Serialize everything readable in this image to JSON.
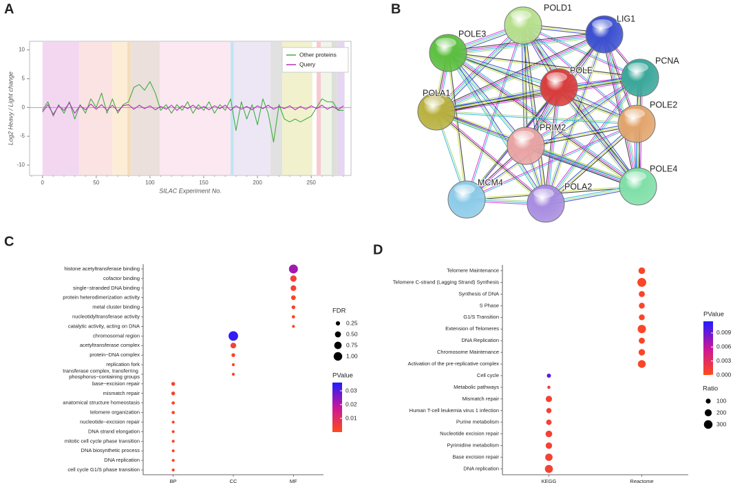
{
  "chart_data": [
    {
      "type": "line",
      "panel": "A",
      "x_label": "SILAC Experiment No.",
      "y_label": "Log2 Heavy / Light change",
      "x": [
        0,
        5,
        10,
        15,
        20,
        25,
        30,
        35,
        40,
        45,
        50,
        55,
        60,
        65,
        70,
        75,
        80,
        85,
        90,
        95,
        100,
        105,
        110,
        115,
        120,
        125,
        130,
        135,
        140,
        145,
        150,
        155,
        160,
        165,
        170,
        175,
        180,
        185,
        190,
        195,
        200,
        205,
        210,
        215,
        220,
        225,
        230,
        235,
        240,
        245,
        250,
        255,
        260,
        265,
        270,
        275,
        280
      ],
      "series": [
        {
          "name": "Other proteins",
          "color": "#3fae3f",
          "values": [
            -0.5,
            1,
            -1.5,
            0.5,
            -1,
            1,
            -2,
            0.5,
            -1,
            1.5,
            0,
            2.5,
            -1,
            1.5,
            -1,
            0.5,
            1,
            3.5,
            4,
            3,
            4.5,
            2.5,
            -0.5,
            0.5,
            -1,
            0.5,
            -0.5,
            1,
            -1,
            0.5,
            -0.5,
            1,
            -1,
            0.5,
            -0.5,
            1.5,
            -4,
            1,
            -2,
            0.5,
            -3,
            1.5,
            -1,
            -6,
            0.5,
            -2,
            -2.5,
            -2,
            -2.5,
            -2,
            -1.5,
            0,
            1.5,
            1,
            1,
            -0.5,
            -0.5
          ]
        },
        {
          "name": "Query",
          "color": "#b22fb8",
          "values": [
            -0.8,
            0.5,
            -1.2,
            0.3,
            -0.5,
            0.8,
            -1,
            0.3,
            -0.4,
            0.6,
            -0.3,
            0.5,
            -0.5,
            0.4,
            -0.6,
            0.3,
            0.5,
            -0.3,
            0.4,
            -0.2,
            0.3,
            -0.4,
            0.2,
            -0.3,
            0.4,
            -0.5,
            0.3,
            -0.2,
            0.4,
            -0.3,
            0.2,
            -0.4,
            0.3,
            -0.2,
            0.4,
            -0.5,
            0.3,
            -0.3,
            0.2,
            -0.4,
            0.3,
            -0.2,
            0.4,
            -0.3,
            0.2,
            -0.2,
            0.3,
            -0.4,
            0.2,
            -0.3,
            0.3,
            -0.2,
            0.4,
            -0.3,
            0.2,
            -0.4,
            0.3
          ]
        }
      ],
      "bands": [
        {
          "range": [
            0,
            34
          ],
          "color": "#f2d3ef"
        },
        {
          "range": [
            34,
            65
          ],
          "color": "#fbe0e0"
        },
        {
          "range": [
            65,
            79
          ],
          "color": "#fdebd3"
        },
        {
          "range": [
            79,
            82
          ],
          "color": "#f2d9b0"
        },
        {
          "range": [
            82,
            109
          ],
          "color": "#e9ddd8"
        },
        {
          "range": [
            109,
            175
          ],
          "color": "#fbe6ef"
        },
        {
          "range": [
            175,
            178
          ],
          "color": "#b9e2f2"
        },
        {
          "range": [
            178,
            212
          ],
          "color": "#ebe4f4"
        },
        {
          "range": [
            212,
            223
          ],
          "color": "#dedede"
        },
        {
          "range": [
            223,
            251
          ],
          "color": "#efefc8"
        },
        {
          "range": [
            255,
            259
          ],
          "color": "#f7c3cc"
        },
        {
          "range": [
            259,
            269
          ],
          "color": "#eef4e6"
        },
        {
          "range": [
            269,
            274
          ],
          "color": "#d9dcd6"
        },
        {
          "range": [
            274,
            281
          ],
          "color": "#e2d3ef"
        }
      ],
      "xlim": [
        -12,
        287
      ],
      "ylim": [
        -11.8,
        11.5
      ],
      "xticks": [
        0,
        50,
        100,
        150,
        200,
        250
      ],
      "yticks": [
        -10,
        -5,
        0,
        5,
        10
      ],
      "legend": "upper right"
    },
    {
      "type": "dot",
      "panel": "C",
      "x_categories": [
        "BP",
        "CC",
        "MF"
      ],
      "categories": [
        "histone acetyltransferase binding",
        "cofactor binding",
        "single−stranded DNA binding",
        "protein heterodimerization activity",
        "metal cluster binding",
        "nucleotidyltransferase activity",
        "catalytic activity, acting on DNA",
        "chromosomal region",
        "acetyltransferase complex",
        "protein−DNA complex",
        "replication fork",
        "transferase complex, transferring phosphorus−containing groups",
        "base−excision repair",
        "mismatch repair",
        "anatomical structure homeostasis",
        "telomere organization",
        "nucleotide−excision repair",
        "DNA strand elongation",
        "mitotic cell cycle phase transition",
        "DNA biosynthetic process",
        "DNA replication",
        "cell cycle G1/S phase transition"
      ],
      "group": [
        "MF",
        "MF",
        "MF",
        "MF",
        "MF",
        "MF",
        "MF",
        "CC",
        "CC",
        "CC",
        "CC",
        "CC",
        "BP",
        "BP",
        "BP",
        "BP",
        "BP",
        "BP",
        "BP",
        "BP",
        "BP",
        "BP"
      ],
      "size_values": [
        1.1,
        0.55,
        0.45,
        0.3,
        0.2,
        0.15,
        0.12,
        1.25,
        0.45,
        0.2,
        0.12,
        0.12,
        0.2,
        0.2,
        0.15,
        0.15,
        0.12,
        0.12,
        0.12,
        0.12,
        0.12,
        0.12
      ],
      "color_values": [
        0.022,
        0.004,
        0.003,
        0.002,
        0.002,
        0.001,
        0.001,
        0.034,
        0.003,
        0.002,
        0.001,
        0.001,
        0.002,
        0.002,
        0.001,
        0.001,
        0.001,
        0.001,
        0.001,
        0.001,
        0.001,
        0.001
      ],
      "size_legend": {
        "title": "FDR",
        "values": [
          0.25,
          {
            "value": 0.5,
            "label": "0.50"
          },
          0.75,
          {
            "value": 1,
            "label": "1.00"
          }
        ]
      },
      "color_legend": {
        "title": "PValue",
        "lim": [
          0,
          0.036
        ],
        "ticks": [
          0.01,
          0.02,
          0.03
        ],
        "colors": [
          "#ff4a1c",
          "#c8169a",
          "#1f1dff"
        ]
      }
    },
    {
      "type": "dot",
      "panel": "D",
      "x_categories": [
        "KEGG",
        "Reactome"
      ],
      "categories": [
        "Telomere Maintenance",
        "Telomere C-strand (Lagging Strand) Synthesis",
        "Synthesis of DNA",
        "S Phase",
        "G1/S Transition",
        "Extension of Telomeres",
        "DNA Replication",
        "Chromosome Maintenance",
        "Activation of the pre-replicative complex",
        "Cell cycle",
        "Metabolic pathways",
        "Mismatch repair",
        "Human T-cell leukemia virus 1 infection",
        "Purine metabolism",
        "Nucleotide excision repair",
        "Pyrimidine metabolism",
        "Base excision repair",
        "DNA replication"
      ],
      "group": [
        "Reactome",
        "Reactome",
        "Reactome",
        "Reactome",
        "Reactome",
        "Reactome",
        "Reactome",
        "Reactome",
        "Reactome",
        "KEGG",
        "KEGG",
        "KEGG",
        "KEGG",
        "KEGG",
        "KEGG",
        "KEGG",
        "KEGG",
        "KEGG"
      ],
      "size_values": [
        180,
        320,
        150,
        140,
        140,
        280,
        150,
        170,
        250,
        70,
        40,
        160,
        110,
        120,
        180,
        170,
        220,
        260
      ],
      "color_values": [
        0.0005,
        0.0005,
        0.0005,
        0.0005,
        0.0005,
        0.0005,
        0.0005,
        0.0005,
        0.0005,
        0.0095,
        0.002,
        0.001,
        0.001,
        0.001,
        0.001,
        0.001,
        0.001,
        0.001
      ],
      "size_legend": {
        "title": "Ratio",
        "values": [
          100,
          200,
          300
        ]
      },
      "color_legend": {
        "title": "PValue",
        "lim": [
          0,
          0.0115
        ],
        "ticks": [
          {
            "value": 0,
            "label": "0.000"
          },
          0.003,
          0.006,
          0.009
        ],
        "colors": [
          "#ff4a1c",
          "#c8169a",
          "#1f1dff"
        ]
      }
    }
  ],
  "network": {
    "panel": "B",
    "nodes": [
      {
        "label": "POLD1",
        "color": "#b6df8c"
      },
      {
        "label": "LIG1",
        "color": "#3b4fd0"
      },
      {
        "label": "POLE3",
        "color": "#5cbf3f"
      },
      {
        "label": "PCNA",
        "color": "#3aa79a"
      },
      {
        "label": "POLE",
        "color": "#d93c3c"
      },
      {
        "label": "POLA1",
        "color": "#b8b03e"
      },
      {
        "label": "POLE2",
        "color": "#e2a56c"
      },
      {
        "label": "PRIM2",
        "color": "#e9a3a3"
      },
      {
        "label": "POLE4",
        "color": "#7fdfa7"
      },
      {
        "label": "MCM4",
        "color": "#8ccbe8"
      },
      {
        "label": "POLA2",
        "color": "#a78ce0"
      }
    ]
  }
}
